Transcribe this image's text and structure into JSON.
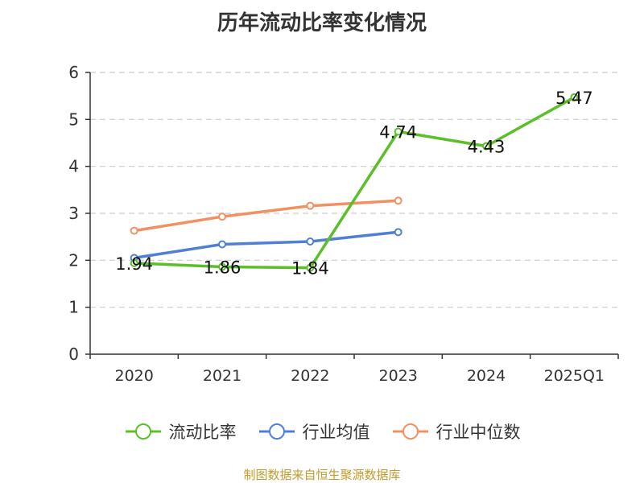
{
  "title": "历年流动比率变化情况",
  "source": "制图数据来自恒生聚源数据库",
  "colors": {
    "series_1": "#5cbf2a",
    "series_2": "#4f7fd6",
    "series_3": "#f39063",
    "grid": "#cccccc",
    "axis": "#333333"
  },
  "chart_data": {
    "type": "line",
    "categories": [
      "2020",
      "2021",
      "2022",
      "2023",
      "2024",
      "2025Q1"
    ],
    "y_ticks": [
      "0",
      "1",
      "2",
      "3",
      "4",
      "5",
      "6"
    ],
    "ylim": [
      0,
      6
    ],
    "grid": true,
    "legend_position": "bottom",
    "series": [
      {
        "name": "流动比率",
        "values": [
          1.94,
          1.86,
          1.84,
          4.74,
          4.43,
          5.47
        ],
        "labels": [
          "1.94",
          "1.86",
          "1.84",
          "4.74",
          "4.43",
          "5.47"
        ]
      },
      {
        "name": "行业均值",
        "values": [
          2.05,
          2.34,
          2.4,
          2.6,
          null,
          null
        ]
      },
      {
        "name": "行业中位数",
        "values": [
          2.63,
          2.93,
          3.16,
          3.27,
          null,
          null
        ]
      }
    ]
  }
}
